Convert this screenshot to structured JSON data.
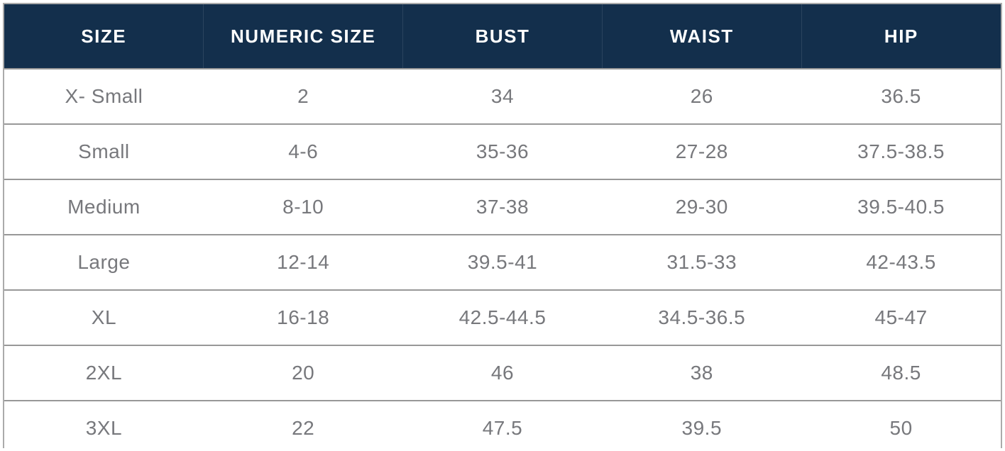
{
  "colors": {
    "header_background": "#132f4c",
    "header_text": "#ffffff",
    "body_text": "#77787c",
    "row_border": "#989898",
    "outer_border": "#ababab"
  },
  "chart_data": {
    "type": "table",
    "columns": [
      "SIZE",
      "NUMERIC SIZE",
      "BUST",
      "WAIST",
      "HIP"
    ],
    "rows": [
      {
        "size": "X- Small",
        "numeric_size": "2",
        "bust": "34",
        "waist": "26",
        "hip": "36.5"
      },
      {
        "size": "Small",
        "numeric_size": "4-6",
        "bust": "35-36",
        "waist": "27-28",
        "hip": "37.5-38.5"
      },
      {
        "size": "Medium",
        "numeric_size": "8-10",
        "bust": "37-38",
        "waist": "29-30",
        "hip": "39.5-40.5"
      },
      {
        "size": "Large",
        "numeric_size": "12-14",
        "bust": "39.5-41",
        "waist": "31.5-33",
        "hip": "42-43.5"
      },
      {
        "size": "XL",
        "numeric_size": "16-18",
        "bust": "42.5-44.5",
        "waist": "34.5-36.5",
        "hip": "45-47"
      },
      {
        "size": "2XL",
        "numeric_size": "20",
        "bust": "46",
        "waist": "38",
        "hip": "48.5"
      },
      {
        "size": "3XL",
        "numeric_size": "22",
        "bust": "47.5",
        "waist": "39.5",
        "hip": "50"
      }
    ]
  }
}
